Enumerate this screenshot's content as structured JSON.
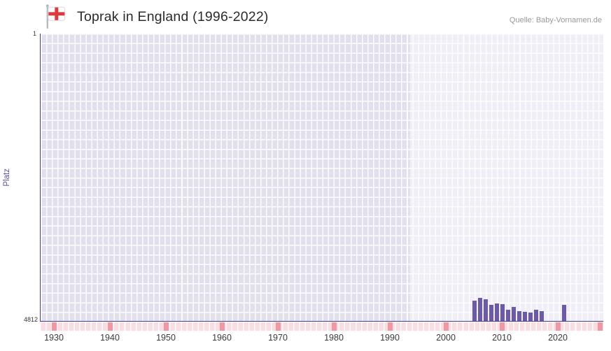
{
  "header": {
    "title": "Toprak in England (1996-2022)",
    "source": "Quelle: Baby-Vornamen.de",
    "flag_icon": "england-flag-icon"
  },
  "chart_data": {
    "type": "bar",
    "title": "Toprak in England (1996-2022)",
    "source": "Quelle: Baby-Vornamen.de",
    "ylabel": "Platz",
    "y_axis": {
      "min": 1,
      "max": 4812,
      "inverted": true,
      "top_label": "1",
      "bottom_label": "4812"
    },
    "x_range": [
      1928,
      2028.5
    ],
    "x_ticks": [
      1930,
      1940,
      1950,
      1960,
      1970,
      1980,
      1990,
      2000,
      2010,
      2020
    ],
    "highlight_start_year": 1994,
    "grid": true,
    "legend": "none",
    "bars": [
      {
        "year": 2005,
        "rank": 4470
      },
      {
        "year": 2006,
        "rank": 4420
      },
      {
        "year": 2007,
        "rank": 4445
      },
      {
        "year": 2008,
        "rank": 4540
      },
      {
        "year": 2009,
        "rank": 4515
      },
      {
        "year": 2010,
        "rank": 4530
      },
      {
        "year": 2011,
        "rank": 4625
      },
      {
        "year": 2012,
        "rank": 4580
      },
      {
        "year": 2013,
        "rank": 4645
      },
      {
        "year": 2014,
        "rank": 4655
      },
      {
        "year": 2015,
        "rank": 4675
      },
      {
        "year": 2016,
        "rank": 4630
      },
      {
        "year": 2017,
        "rank": 4650
      },
      {
        "year": 2021,
        "rank": 4545
      }
    ],
    "colors": {
      "bar": "#6c59a8",
      "plot_bg": "#e3e0ee",
      "plot_bg_recent": "#efedf7",
      "axis": "#443a8c",
      "grid": "#ffffff",
      "strip_bg": "#f9dde2",
      "strip_marker": "#ef97a2",
      "ylabel_color": "#5b4ea0",
      "flag_red": "#dd3a3f"
    }
  }
}
